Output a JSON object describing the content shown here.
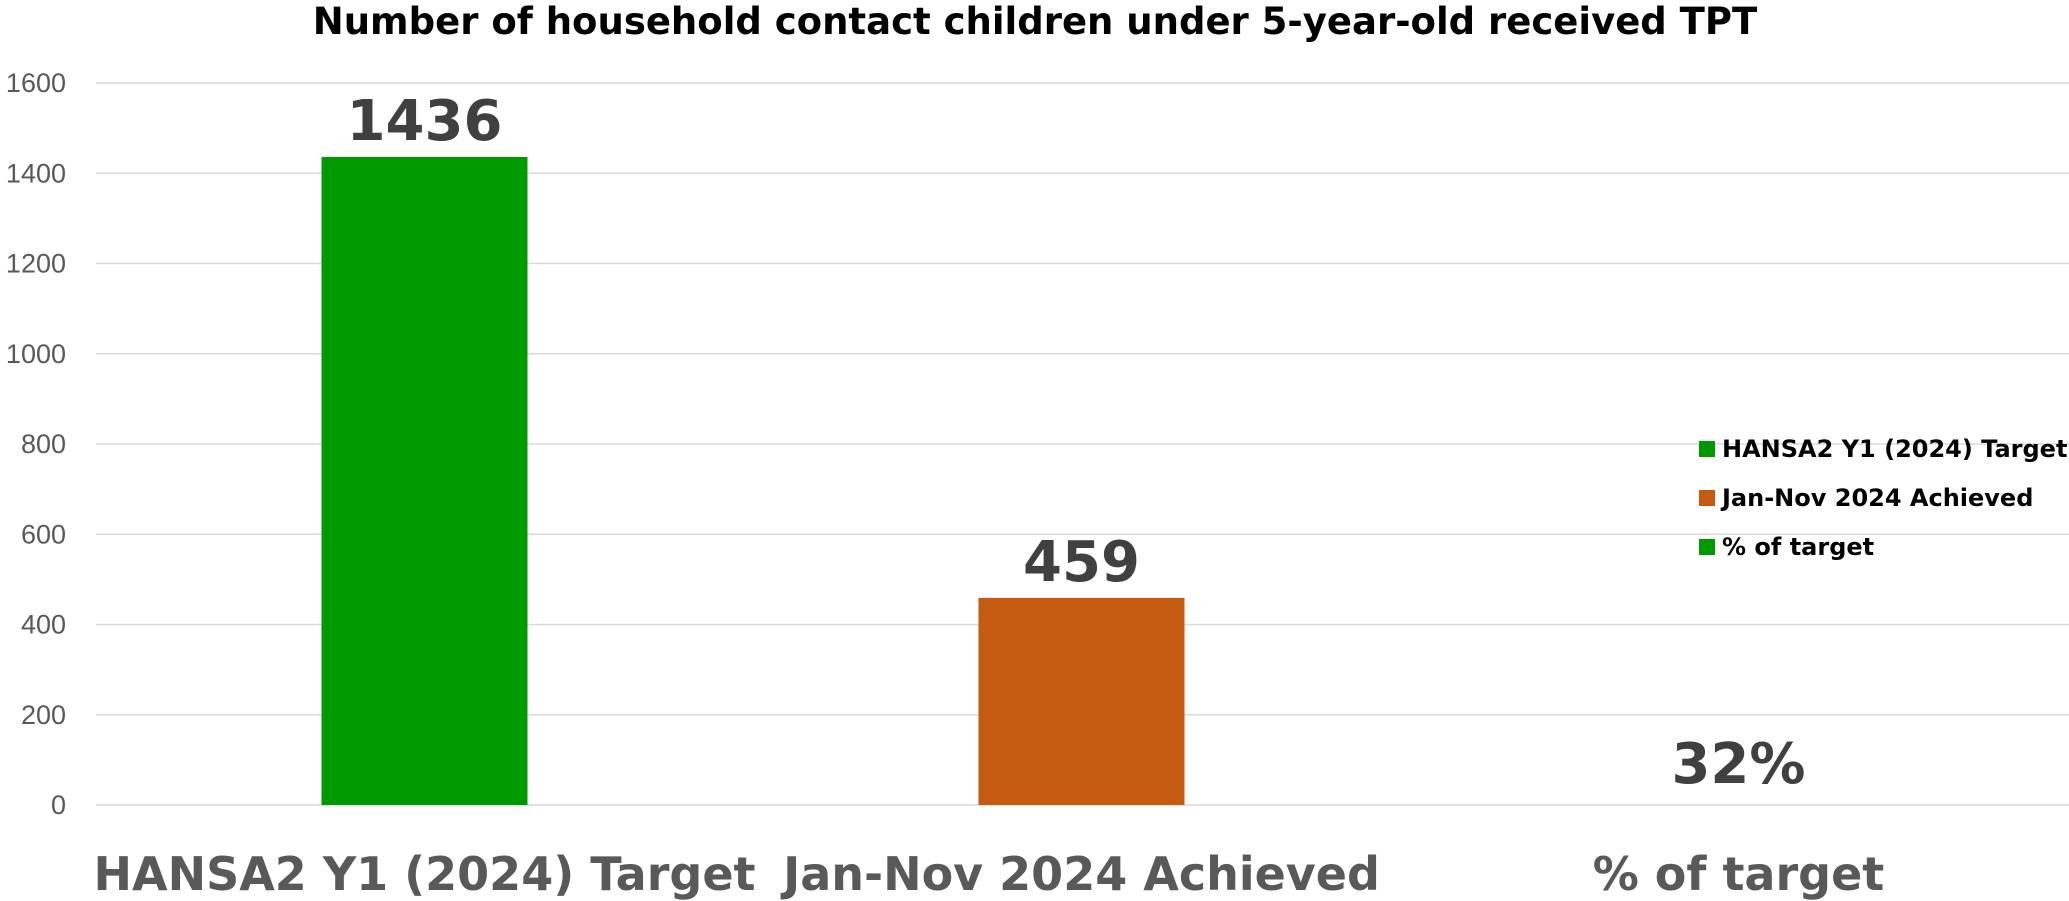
{
  "chart_data": {
    "type": "bar",
    "title": "Number of household contact children under 5-year-old received TPT",
    "categories": [
      "HANSA2 Y1 (2024) Target",
      "Jan-Nov 2024 Achieved",
      "% of target"
    ],
    "values": [
      1436,
      459,
      null
    ],
    "data_labels": [
      "1436",
      "459",
      "32%"
    ],
    "bar_colors": [
      "#009900",
      "#C55A11",
      "#009900"
    ],
    "legend": {
      "position": "right",
      "entries": [
        {
          "label": "HANSA2 Y1 (2024) Target",
          "color": "#009900"
        },
        {
          "label": "Jan-Nov 2024 Achieved",
          "color": "#C55A11"
        },
        {
          "label": "% of target",
          "color": "#009900"
        }
      ]
    },
    "y_ticks": [
      0,
      200,
      400,
      600,
      800,
      1000,
      1200,
      1400,
      1600
    ],
    "ylim": [
      0,
      1600
    ],
    "grid": true,
    "xlabel": "",
    "ylabel": ""
  }
}
